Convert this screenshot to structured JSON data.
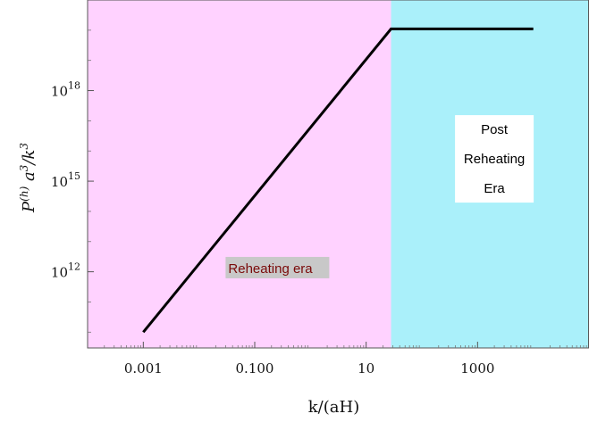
{
  "chart_data": {
    "type": "line",
    "xscale": "log",
    "yscale": "log",
    "xlim": [
      0.0001,
      100000
    ],
    "ylim": [
      3000000000.0,
      1e+21
    ],
    "xlabel": "k/(aH)",
    "ylabel": {
      "base": "P",
      "sup1": "(h)",
      "mid": " a",
      "sup2": "3",
      "slash": "/k",
      "sup3": "3"
    },
    "xticks": [
      {
        "value": 0.001,
        "label": "0.001"
      },
      {
        "value": 0.1,
        "label": "0.100"
      },
      {
        "value": 10,
        "label": "10"
      },
      {
        "value": 1000,
        "label": "1000"
      }
    ],
    "yticks": [
      {
        "value": 1000000000000.0,
        "base": "10",
        "exp": "12"
      },
      {
        "value": 1000000000000000.0,
        "base": "10",
        "exp": "15"
      },
      {
        "value": 1e+18,
        "base": "10",
        "exp": "18"
      }
    ],
    "regions": [
      {
        "label": "Reheating era",
        "x_from": 0.0001,
        "x_to": 28,
        "color": "#ffd2ff"
      },
      {
        "label": "Post Reheating Era",
        "x_from": 28,
        "x_to": 100000,
        "color": "#aaf0fa"
      }
    ],
    "series": [
      {
        "color": "#000000",
        "x": [
          0.001,
          28,
          10000
        ],
        "y": [
          10000000000.0,
          1.1e+20,
          1.1e+20
        ]
      }
    ],
    "annotations": {
      "reheating": {
        "text": "Reheating era",
        "x": 0.03,
        "y": 1200000000000.0,
        "bg": "#c8c8c8",
        "color": "#7a0a0a"
      },
      "post": {
        "lines": [
          "Post",
          "Reheating",
          "Era"
        ],
        "x": 2000,
        "y": 1000000000000000.0,
        "bg": "#ffffff",
        "color": "#000000"
      }
    },
    "grid": false
  }
}
